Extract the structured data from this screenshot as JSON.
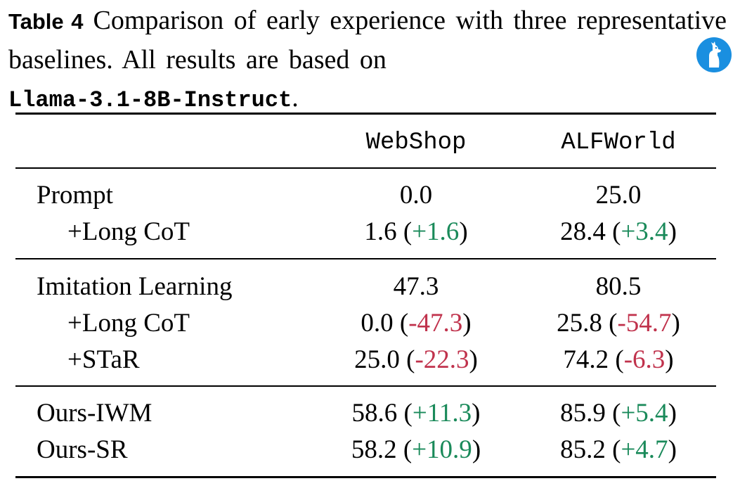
{
  "caption": {
    "label": "Table 4",
    "text": "Comparison of early experience with three representative baselines. All results are based on",
    "model": "Llama-3.1-8B-Instruct",
    "end": "."
  },
  "icon": "llama-icon",
  "columns": [
    "WebShop",
    "ALFWorld"
  ],
  "groups": [
    {
      "rows": [
        {
          "label": "Prompt",
          "webshop": "0.0",
          "webshop_delta": "",
          "alfworld": "25.0",
          "alfworld_delta": ""
        },
        {
          "label": "+Long CoT",
          "webshop": "1.6",
          "webshop_delta": "+1.6",
          "alfworld": "28.4",
          "alfworld_delta": "+3.4"
        }
      ]
    },
    {
      "rows": [
        {
          "label": "Imitation Learning",
          "webshop": "47.3",
          "webshop_delta": "",
          "alfworld": "80.5",
          "alfworld_delta": ""
        },
        {
          "label": "+Long CoT",
          "webshop": "0.0",
          "webshop_delta": "-47.3",
          "alfworld": "25.8",
          "alfworld_delta": "-54.7"
        },
        {
          "label": "+STaR",
          "webshop": "25.0",
          "webshop_delta": "-22.3",
          "alfworld": "74.2",
          "alfworld_delta": "-6.3"
        }
      ]
    },
    {
      "rows": [
        {
          "label": "Ours-IWM",
          "webshop": "58.6",
          "webshop_delta": "+11.3",
          "alfworld": "85.9",
          "alfworld_delta": "+5.4"
        },
        {
          "label": "Ours-SR",
          "webshop": "58.2",
          "webshop_delta": "+10.9",
          "alfworld": "85.2",
          "alfworld_delta": "+4.7"
        }
      ]
    }
  ],
  "colors": {
    "positive": "#1a8a5a",
    "negative": "#c0324c"
  }
}
